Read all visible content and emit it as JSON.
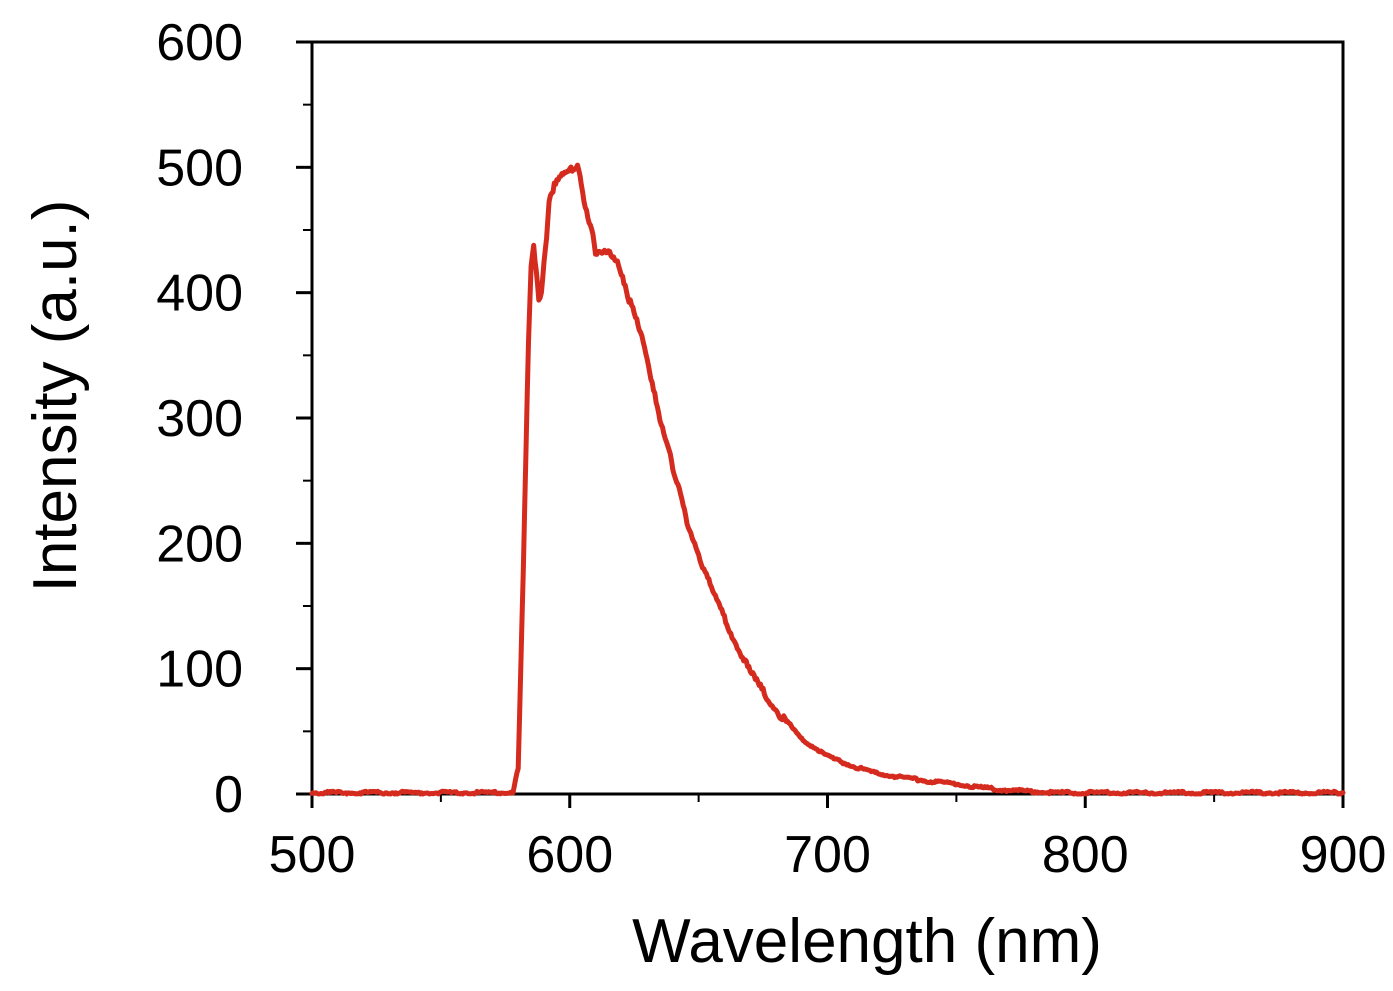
{
  "chart_data": {
    "type": "line",
    "title": "",
    "xlabel": "Wavelength (nm)",
    "ylabel": "Intensity (a.u.)",
    "xlim": [
      500,
      900
    ],
    "ylim": [
      0,
      600
    ],
    "x_ticks": [
      500,
      600,
      700,
      800,
      900
    ],
    "y_ticks": [
      0,
      100,
      200,
      300,
      400,
      500,
      600
    ],
    "x_minor_step": 50,
    "y_minor_step": 50,
    "grid": false,
    "legend": "none",
    "series": [
      {
        "name": "Intensity",
        "color": "#d42b1e",
        "x": [
          500,
          510,
          520,
          530,
          540,
          550,
          560,
          570,
          575,
          578,
          580,
          582,
          584,
          585,
          586,
          587,
          588,
          589,
          590,
          591,
          592,
          594,
          596,
          598,
          600,
          602,
          603,
          604,
          605,
          606,
          607,
          608,
          609,
          610,
          612,
          615,
          617,
          619,
          621,
          623,
          625,
          628,
          630,
          633,
          635,
          638,
          640,
          643,
          645,
          650,
          655,
          660,
          665,
          670,
          675,
          680,
          685,
          690,
          695,
          700,
          710,
          720,
          730,
          740,
          750,
          760,
          770,
          780,
          790,
          800,
          820,
          840,
          860,
          880,
          900
        ],
        "y": [
          1,
          1,
          1,
          1,
          1,
          1,
          1,
          1,
          1,
          2,
          20,
          180,
          360,
          420,
          435,
          420,
          395,
          400,
          425,
          445,
          475,
          485,
          490,
          495,
          497,
          500,
          502,
          495,
          482,
          470,
          462,
          455,
          445,
          430,
          430,
          432,
          430,
          424,
          410,
          395,
          383,
          363,
          345,
          320,
          300,
          280,
          258,
          238,
          220,
          192,
          163,
          140,
          118,
          97,
          82,
          67,
          55,
          44,
          37,
          30,
          22,
          16,
          13,
          10,
          8,
          5,
          3,
          2,
          1,
          1,
          1,
          1,
          1,
          1,
          1
        ]
      }
    ]
  }
}
